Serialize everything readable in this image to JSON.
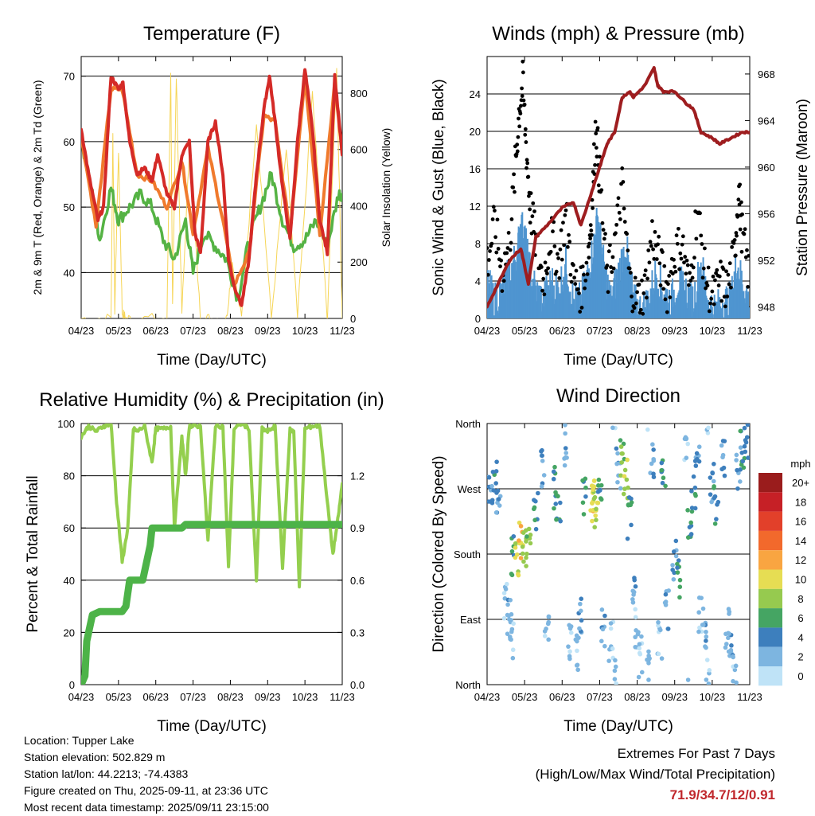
{
  "info": {
    "location": "Location: Tupper Lake",
    "elevation": "Station elevation: 502.829 m",
    "latlon": "Station lat/lon: 44.2213; -74.4383",
    "created": "Figure created on Thu, 2025-09-11, at 23:36 UTC",
    "recent": "Most recent data timestamp: 2025/09/11 23:15:00"
  },
  "extremes": {
    "line1": "Extremes For Past 7 Days",
    "line2": "(High/Low/Max Wind/Total Precipitation)",
    "values": "71.9/34.7/12/0.91",
    "values_color": "#c0282d"
  },
  "chart_data": [
    {
      "type": "line",
      "title": "Temperature (F)",
      "xlabel": "Time (Day/UTC)",
      "ylabel": "2m & 9m T (Red, Orange) & 2m Td (Green)",
      "y2label": "Solar Insolation (Yellow)",
      "x_ticks": [
        "04/23",
        "05/23",
        "06/23",
        "07/23",
        "08/23",
        "09/23",
        "10/23",
        "11/23"
      ],
      "xlim": [
        "04/23",
        "11/23"
      ],
      "ylim": [
        33,
        73
      ],
      "y_ticks": [
        40,
        50,
        60,
        70
      ],
      "y2lim": [
        0,
        930
      ],
      "y2_ticks": [
        0,
        200,
        400,
        600,
        800
      ],
      "grid": true,
      "series": [
        {
          "name": "2m T",
          "color": "#d42a27",
          "axis": "left",
          "x": [
            0,
            0.2,
            0.45,
            0.6,
            0.8,
            1.0,
            1.12,
            1.3,
            1.5,
            1.7,
            1.9,
            2.05,
            2.3,
            2.5,
            2.7,
            2.9,
            3.05,
            3.2,
            3.4,
            3.6,
            3.8,
            3.95,
            4.1,
            4.3,
            4.5,
            4.7,
            4.9,
            5.05,
            5.2,
            5.4,
            5.6,
            5.8,
            6.0,
            6.2,
            6.4,
            6.6,
            6.8,
            7.0
          ],
          "values": [
            62,
            55,
            48,
            50,
            70,
            68,
            69,
            60,
            55,
            56,
            54,
            58,
            52,
            50,
            58,
            60,
            46,
            43,
            60,
            63,
            55,
            42,
            38,
            35,
            42,
            55,
            65,
            70,
            63,
            53,
            45,
            60,
            71,
            62,
            48,
            43,
            70,
            58
          ]
        },
        {
          "name": "9m T",
          "color": "#f07a2d",
          "axis": "left",
          "x": [
            0,
            0.4,
            0.8,
            1.1,
            1.5,
            1.9,
            2.3,
            2.7,
            3.0,
            3.4,
            3.8,
            4.1,
            4.5,
            4.9,
            5.2,
            5.6,
            6.0,
            6.4,
            6.8,
            7.0
          ],
          "values": [
            61,
            47,
            68,
            68,
            55,
            54,
            50,
            57,
            46,
            59,
            48,
            38,
            43,
            64,
            63,
            46,
            70,
            46,
            69,
            58
          ]
        },
        {
          "name": "2m Td",
          "color": "#55b344",
          "axis": "left",
          "x": [
            0,
            0.3,
            0.5,
            0.8,
            1.0,
            1.3,
            1.6,
            1.9,
            2.2,
            2.5,
            2.8,
            3.0,
            3.3,
            3.6,
            3.9,
            4.2,
            4.5,
            4.8,
            5.1,
            5.4,
            5.7,
            6.0,
            6.3,
            6.6,
            6.9,
            7.0
          ],
          "values": [
            60,
            52,
            45,
            53,
            48,
            50,
            52,
            50,
            45,
            42,
            48,
            40,
            46,
            44,
            42,
            36,
            45,
            50,
            55,
            48,
            44,
            45,
            48,
            44,
            52,
            52
          ]
        },
        {
          "name": "Solar Insolation",
          "color": "#f6d556",
          "axis": "right",
          "x": [
            0,
            0.8,
            0.85,
            0.9,
            1.0,
            1.1,
            1.2,
            1.5,
            2.3,
            2.4,
            2.45,
            2.55,
            2.7,
            2.9,
            3.2,
            3.5,
            3.9,
            4.05,
            4.3,
            4.7,
            5.1,
            5.5,
            5.8,
            6.2,
            6.6,
            6.85,
            7.0
          ],
          "values": [
            0,
            0,
            650,
            30,
            600,
            20,
            0,
            0,
            0,
            880,
            50,
            860,
            20,
            600,
            0,
            0,
            0,
            200,
            0,
            700,
            0,
            600,
            0,
            800,
            0,
            900,
            0
          ]
        }
      ]
    },
    {
      "type": "scatter",
      "title": "Winds (mph) & Pressure (mb)",
      "xlabel": "Time (Day/UTC)",
      "ylabel": "Sonic Wind & Gust (Blue, Black)",
      "y2label": "Station Pressure (Maroon)",
      "x_ticks": [
        "04/23",
        "05/23",
        "06/23",
        "07/23",
        "08/23",
        "09/23",
        "10/23",
        "11/23"
      ],
      "xlim": [
        "04/23",
        "11/23"
      ],
      "ylim": [
        0,
        28
      ],
      "y_ticks": [
        0,
        4,
        8,
        12,
        16,
        20,
        24
      ],
      "y2lim": [
        947,
        969.5
      ],
      "y2_ticks": [
        948,
        952,
        956,
        960,
        964,
        968
      ],
      "grid": true,
      "series": [
        {
          "name": "Gust",
          "color": "#000000",
          "axis": "left",
          "x": [
            0,
            0.2,
            0.4,
            0.6,
            0.75,
            0.85,
            0.95,
            1.05,
            1.15,
            1.3,
            1.5,
            1.7,
            1.9,
            2.1,
            2.3,
            2.5,
            2.7,
            2.8,
            2.9,
            3.0,
            3.2,
            3.4,
            3.6,
            3.8,
            4.0,
            4.2,
            4.4,
            4.6,
            4.8,
            5.0,
            5.2,
            5.4,
            5.6,
            5.8,
            6.0,
            6.2,
            6.4,
            6.6,
            6.7,
            6.8,
            7.0
          ],
          "values": [
            6,
            10,
            5,
            8,
            16,
            22,
            25,
            18,
            12,
            8,
            4,
            9,
            6,
            11,
            4,
            3,
            7,
            12,
            21,
            15,
            4,
            8,
            14,
            4,
            2,
            3,
            9,
            6,
            3,
            7,
            8,
            3,
            12,
            5,
            2,
            4,
            3,
            7,
            14,
            9,
            4
          ]
        },
        {
          "name": "Wind",
          "color": "#4f95d0",
          "axis": "left",
          "x": [
            0,
            0.2,
            0.4,
            0.6,
            0.8,
            0.9,
            1.0,
            1.1,
            1.3,
            1.5,
            1.7,
            1.9,
            2.1,
            2.3,
            2.5,
            2.7,
            2.85,
            2.95,
            3.1,
            3.3,
            3.5,
            3.7,
            3.9,
            4.1,
            4.3,
            4.5,
            4.7,
            4.9,
            5.1,
            5.3,
            5.5,
            5.7,
            5.9,
            6.1,
            6.3,
            6.5,
            6.65,
            6.8,
            7.0
          ],
          "values": [
            4,
            2,
            3,
            5,
            7,
            10,
            9,
            6,
            3,
            2,
            4,
            3,
            6,
            2,
            2,
            5,
            8,
            11,
            6,
            2,
            5,
            8,
            2,
            1,
            2,
            5,
            3,
            2,
            4,
            3,
            2,
            6,
            2,
            1,
            2,
            2,
            6,
            4,
            2
          ]
        },
        {
          "name": "Pressure",
          "color": "#9e1d1f",
          "axis": "right",
          "type": "line",
          "x": [
            0,
            0.3,
            0.6,
            0.9,
            1.1,
            1.3,
            1.6,
            2.0,
            2.3,
            2.5,
            2.8,
            3.0,
            3.2,
            3.4,
            3.6,
            3.8,
            3.9,
            4.2,
            4.45,
            4.55,
            4.7,
            5.0,
            5.3,
            5.5,
            5.7,
            6.0,
            6.2,
            6.5,
            6.8,
            7.0
          ],
          "values": [
            948,
            950,
            952,
            953,
            950,
            954,
            955,
            956.5,
            957,
            955,
            958,
            960,
            962,
            963,
            966,
            966.5,
            966,
            967,
            968.5,
            967,
            966.5,
            966.5,
            965.5,
            965,
            963,
            962.5,
            962,
            962.5,
            963,
            963
          ]
        }
      ]
    },
    {
      "type": "line",
      "title": "Relative Humidity (%) & Precipitation (in)",
      "xlabel": "Time (Day/UTC)",
      "ylabel": "Percent & Total Rainfall",
      "x_ticks": [
        "04/23",
        "05/23",
        "06/23",
        "07/23",
        "08/23",
        "09/23",
        "10/23",
        "11/23"
      ],
      "xlim": [
        "04/23",
        "11/23"
      ],
      "ylim": [
        0,
        100
      ],
      "y_ticks": [
        0,
        20,
        40,
        60,
        80,
        100
      ],
      "y2lim": [
        0,
        1.5
      ],
      "y2_ticks": [
        "0.0",
        "0.3",
        "0.6",
        "0.9",
        "1.2"
      ],
      "grid": true,
      "series": [
        {
          "name": "Relative Humidity",
          "color": "#94cf4e",
          "axis": "left",
          "x": [
            0,
            0.2,
            0.4,
            0.6,
            0.8,
            0.95,
            1.1,
            1.25,
            1.4,
            1.5,
            1.7,
            1.9,
            2.0,
            2.2,
            2.4,
            2.5,
            2.7,
            2.8,
            2.9,
            3.0,
            3.2,
            3.4,
            3.6,
            3.8,
            3.95,
            4.1,
            4.3,
            4.5,
            4.7,
            4.85,
            5.0,
            5.2,
            5.4,
            5.6,
            5.7,
            5.85,
            6.0,
            6.2,
            6.4,
            6.6,
            6.75,
            6.9,
            7.0
          ],
          "values": [
            95,
            99,
            97,
            99,
            100,
            70,
            47,
            60,
            98,
            97,
            99,
            85,
            98,
            98,
            99,
            60,
            95,
            80,
            99,
            99,
            99,
            55,
            99,
            99,
            45,
            98,
            100,
            98,
            40,
            98,
            97,
            99,
            45,
            98,
            97,
            38,
            98,
            99,
            99,
            70,
            50,
            65,
            77
          ]
        },
        {
          "name": "Total Precipitation",
          "color": "#4db348",
          "axis": "right",
          "x": [
            0,
            0.1,
            0.15,
            0.3,
            0.5,
            0.7,
            0.9,
            1.1,
            1.2,
            1.3,
            1.5,
            1.65,
            1.75,
            1.85,
            1.9,
            2.1,
            2.3,
            2.5,
            2.7,
            2.8,
            3.0,
            3.3,
            3.6,
            4.0,
            4.5,
            5.0,
            5.5,
            6.0,
            6.5,
            7.0
          ],
          "values": [
            0,
            0.05,
            0.25,
            0.4,
            0.42,
            0.42,
            0.42,
            0.42,
            0.45,
            0.6,
            0.6,
            0.6,
            0.7,
            0.8,
            0.9,
            0.9,
            0.9,
            0.9,
            0.9,
            0.92,
            0.92,
            0.92,
            0.92,
            0.92,
            0.92,
            0.92,
            0.92,
            0.92,
            0.92,
            0.92
          ]
        }
      ]
    },
    {
      "type": "scatter",
      "title": "Wind Direction",
      "xlabel": "Time (Day/UTC)",
      "ylabel": "Direction (Colored By Speed)",
      "x_ticks": [
        "04/23",
        "05/23",
        "06/23",
        "07/23",
        "08/23",
        "09/23",
        "10/23",
        "11/23"
      ],
      "xlim": [
        "04/23",
        "11/23"
      ],
      "y_ticks": [
        "North",
        "East",
        "South",
        "West",
        "North"
      ],
      "ylim": [
        0,
        360
      ],
      "grid": true,
      "legend_title": "mph",
      "legend_position": "right",
      "color_scale": [
        {
          "label": "20+",
          "color": "#9a1c1c"
        },
        {
          "label": "18",
          "color": "#c62026"
        },
        {
          "label": "16",
          "color": "#e2402a"
        },
        {
          "label": "14",
          "color": "#f2692c"
        },
        {
          "label": "12",
          "color": "#f9a541"
        },
        {
          "label": "10",
          "color": "#e6dd53"
        },
        {
          "label": "8",
          "color": "#96ca4f"
        },
        {
          "label": "6",
          "color": "#45a563"
        },
        {
          "label": "4",
          "color": "#3d7fbd"
        },
        {
          "label": "2",
          "color": "#7db5e0"
        },
        {
          "label": "0",
          "color": "#bfe3f7"
        }
      ],
      "series": [
        {
          "name": "direction",
          "x": [
            0.1,
            0.2,
            0.3,
            0.5,
            0.6,
            0.65,
            0.7,
            0.8,
            0.9,
            1.0,
            1.1,
            1.3,
            1.5,
            1.6,
            1.8,
            1.9,
            2.1,
            2.2,
            2.4,
            2.5,
            2.6,
            2.8,
            2.85,
            2.9,
            3.0,
            3.1,
            3.3,
            3.4,
            3.5,
            3.6,
            3.7,
            3.8,
            3.9,
            4.0,
            4.1,
            4.3,
            4.4,
            4.6,
            4.7,
            4.8,
            5.0,
            5.1,
            5.3,
            5.4,
            5.5,
            5.6,
            5.7,
            5.8,
            5.9,
            6.0,
            6.1,
            6.3,
            6.4,
            6.5,
            6.6,
            6.7,
            6.8,
            6.9
          ],
          "y": [
            260,
            280,
            250,
            110,
            90,
            60,
            180,
            170,
            200,
            190,
            210,
            240,
            300,
            70,
            270,
            250,
            330,
            60,
            40,
            90,
            260,
            250,
            260,
            240,
            270,
            80,
            60,
            20,
            300,
            310,
            280,
            230,
            120,
            80,
            40,
            20,
            310,
            60,
            300,
            100,
            170,
            150,
            340,
            230,
            260,
            300,
            100,
            70,
            10,
            280,
            250,
            310,
            80,
            60,
            30,
            300,
            320,
            330
          ],
          "speed": [
            3,
            4,
            2,
            1,
            2,
            1,
            5,
            9,
            10,
            8,
            7,
            4,
            3,
            1,
            5,
            4,
            2,
            1,
            1,
            2,
            4,
            9,
            10,
            8,
            5,
            2,
            1,
            1,
            3,
            7,
            8,
            5,
            2,
            1,
            1,
            1,
            2,
            1,
            4,
            2,
            3,
            5,
            1,
            4,
            4,
            3,
            1,
            2,
            1,
            3,
            4,
            3,
            1,
            2,
            1,
            2,
            5,
            3
          ]
        }
      ]
    }
  ]
}
